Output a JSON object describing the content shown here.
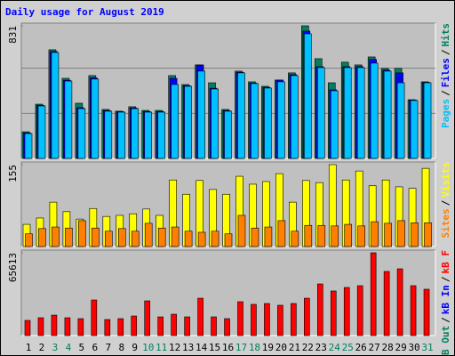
{
  "chart_data": [
    {
      "type": "bar",
      "title": "Daily usage for August 2019",
      "legend_separator": "/",
      "ylim": [
        0,
        831
      ],
      "yticks": [
        831
      ],
      "series": [
        {
          "name": "Hits",
          "color": "#008060",
          "values": [
            167,
            340,
            681,
            502,
            346,
            519,
            307,
            296,
            324,
            301,
            301,
            519,
            463,
            586,
            474,
            307,
            547,
            480,
            452,
            491,
            536,
            831,
            625,
            474,
            603,
            586,
            636,
            564,
            564,
            368,
            480
          ]
        },
        {
          "name": "Files",
          "color": "#0000ff",
          "values": [
            160,
            333,
            670,
            490,
            318,
            505,
            300,
            293,
            316,
            294,
            294,
            502,
            456,
            586,
            440,
            300,
            540,
            472,
            445,
            491,
            525,
            798,
            575,
            430,
            575,
            575,
            620,
            553,
            536,
            366,
            477
          ]
        },
        {
          "name": "Pages",
          "color": "#00c0ff",
          "values": [
            156,
            329,
            664,
            485,
            312,
            497,
            296,
            290,
            312,
            290,
            290,
            463,
            452,
            547,
            435,
            296,
            536,
            469,
            441,
            480,
            519,
            781,
            569,
            424,
            569,
            569,
            597,
            547,
            474,
            363,
            474
          ]
        }
      ]
    },
    {
      "type": "bar",
      "legend_separator": "/",
      "ylim": [
        0,
        155
      ],
      "yticks": [
        155
      ],
      "series": [
        {
          "name": "Visits",
          "color": "#ffff00",
          "values": [
            42,
            54,
            84,
            66,
            52,
            72,
            57,
            59,
            62,
            71,
            59,
            126,
            99,
            125,
            108,
            99,
            133,
            118,
            123,
            138,
            84,
            125,
            121,
            155,
            126,
            143,
            115,
            126,
            113,
            110,
            148
          ]
        },
        {
          "name": "Sites",
          "color": "#ff8000",
          "values": [
            24,
            34,
            37,
            35,
            49,
            35,
            29,
            34,
            29,
            44,
            35,
            37,
            29,
            27,
            29,
            24,
            59,
            35,
            37,
            49,
            29,
            40,
            40,
            39,
            42,
            39,
            47,
            44,
            49,
            45,
            45
          ]
        }
      ]
    },
    {
      "type": "bar",
      "legend_separator": "/",
      "ylim": [
        0,
        65613
      ],
      "yticks": [
        65613
      ],
      "categories": [
        "1",
        "2",
        "3",
        "4",
        "5",
        "6",
        "7",
        "8",
        "9",
        "10",
        "11",
        "12",
        "13",
        "14",
        "15",
        "16",
        "17",
        "18",
        "19",
        "20",
        "21",
        "22",
        "23",
        "24",
        "25",
        "26",
        "27",
        "28",
        "29",
        "30",
        "31"
      ],
      "category_colors": [
        "#000000",
        "#000000",
        "#008060",
        "#008060",
        "#000000",
        "#000000",
        "#000000",
        "#000000",
        "#000000",
        "#008060",
        "#008060",
        "#000000",
        "#000000",
        "#000000",
        "#000000",
        "#000000",
        "#008060",
        "#008060",
        "#000000",
        "#000000",
        "#000000",
        "#000000",
        "#000000",
        "#008060",
        "#008060",
        "#000000",
        "#000000",
        "#000000",
        "#000000",
        "#000000",
        "#008060"
      ],
      "series": [
        {
          "name": "kB F",
          "color": "#ff0000",
          "values": [
            12000,
            14100,
            16200,
            14100,
            13400,
            28200,
            12700,
            13400,
            15500,
            27500,
            14800,
            16900,
            14800,
            29600,
            14800,
            13400,
            26800,
            24700,
            25400,
            24000,
            25400,
            29600,
            40900,
            35300,
            38100,
            39500,
            65613,
            50800,
            52900,
            39500,
            36700
          ]
        }
      ],
      "extra_legend": [
        {
          "name": "kB In",
          "color": "#0000ff"
        },
        {
          "name": "kB Out",
          "color": "#008060"
        }
      ]
    }
  ]
}
